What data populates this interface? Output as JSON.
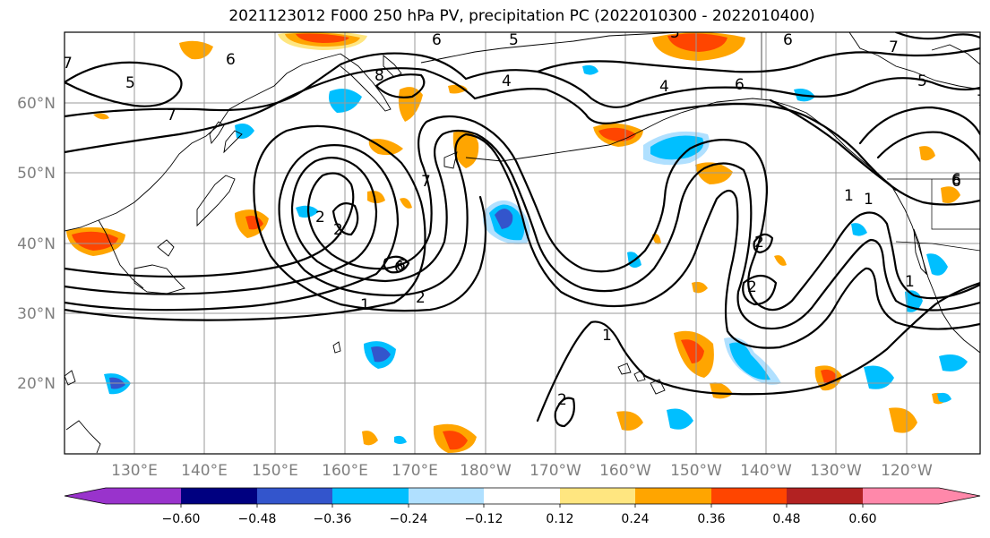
{
  "title": "2021123012 F000 250 hPa PV, precipitation PC (2022010300 - 2022010400)",
  "lat_labels": [
    "60°N",
    "50°N",
    "40°N",
    "30°N",
    "20°N"
  ],
  "lon_labels": [
    "130°E",
    "140°E",
    "150°E",
    "160°E",
    "170°E",
    "180°W",
    "170°W",
    "160°W",
    "150°W",
    "140°W",
    "130°W",
    "120°W"
  ],
  "contour_labels": [
    "7",
    "6",
    "5",
    "7",
    "5",
    "6",
    "4",
    "8",
    "6",
    "5",
    "4",
    "6",
    "6",
    "7",
    "5",
    "7",
    "6",
    "7",
    "2",
    "6",
    "1",
    "2",
    "1",
    "2",
    "1",
    "2",
    "2",
    "1",
    "2",
    "1",
    "6"
  ],
  "colorbar": {
    "tick_labels": [
      "−0.60",
      "−0.48",
      "−0.36",
      "−0.24",
      "−0.12",
      "0.12",
      "0.24",
      "0.36",
      "0.48",
      "0.60"
    ],
    "colors": [
      "#9933cc",
      "#000080",
      "#3355cc",
      "#00bfff",
      "#b0e0ff",
      "#ffffff",
      "#ffe680",
      "#ffa500",
      "#ff4500",
      "#b22222",
      "#ff88aa"
    ]
  },
  "fill_colors": {
    "positive_light": "#ffe680",
    "positive_mid": "#ffa500",
    "positive_strong": "#ff4500",
    "negative_light": "#b0e0ff",
    "negative_mid": "#00bfff",
    "negative_strong": "#3355cc"
  }
}
